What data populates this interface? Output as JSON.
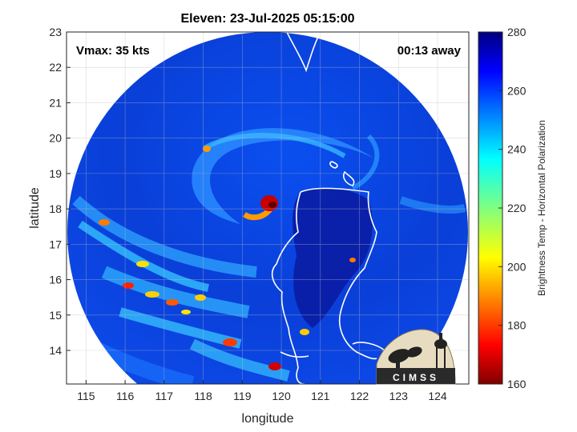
{
  "chart_data": {
    "type": "heatmap",
    "title": "Eleven: 23-Jul-2025 05:15:00",
    "xlabel": "longitude",
    "ylabel": "latitude",
    "xlim": [
      114.5,
      124.8
    ],
    "ylim": [
      13.05,
      23.0
    ],
    "x_ticks": [
      115,
      116,
      117,
      118,
      119,
      120,
      121,
      122,
      123,
      124
    ],
    "y_ticks": [
      14,
      15,
      16,
      17,
      18,
      19,
      20,
      21,
      22,
      23
    ],
    "grid": true,
    "annotations": {
      "vmax": "Vmax: 35 kts",
      "time_away": "00:13 away"
    },
    "colorbar": {
      "label": "Brightness Temp - Horizontal Polarization",
      "range": [
        160,
        280
      ],
      "ticks": [
        160,
        180,
        200,
        220,
        240,
        260,
        280
      ],
      "colormap": "jet"
    },
    "storm_center": {
      "lon": 119.7,
      "lat": 18.1
    },
    "logo_text": "CIMSS"
  },
  "colors": {
    "background_field": "#0b3fd8",
    "rainband": "#3fd0ff",
    "core": "#d40000",
    "land_low": "#0a1a8c",
    "coastline": "#ffffff"
  }
}
